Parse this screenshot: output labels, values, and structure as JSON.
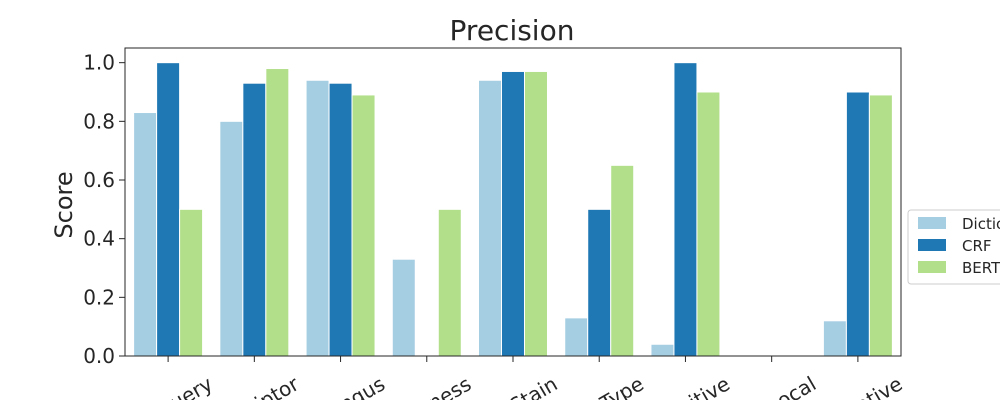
{
  "chart_data": {
    "type": "bar",
    "title": "Precision",
    "xlabel": "",
    "ylabel": "Score",
    "ylim": [
      0,
      1.05
    ],
    "yticks": [
      "0.0",
      "0.2",
      "0.4",
      "0.6",
      "0.8",
      "1.0"
    ],
    "categories": [
      "Query",
      "Descriptor",
      "Fungus",
      "Thickness",
      "Stain",
      "Type",
      "Positive",
      "Equivocal",
      "Negative"
    ],
    "category_visible_text": [
      "uery",
      "iptor",
      "ngus",
      "ness",
      "Stain",
      "Type",
      "itive",
      "ocal",
      "ative"
    ],
    "series": [
      {
        "name": "Dictionary",
        "label_visible": "Dictio",
        "color": "#a6cee3",
        "values": [
          0.83,
          0.8,
          0.94,
          0.33,
          0.94,
          0.13,
          0.04,
          0.0,
          0.12
        ]
      },
      {
        "name": "CRF",
        "label_visible": "CRF",
        "color": "#1f78b4",
        "values": [
          1.0,
          0.93,
          0.93,
          0.0,
          0.97,
          0.5,
          1.0,
          0.0,
          0.9
        ]
      },
      {
        "name": "BERT",
        "label_visible": "BERT",
        "color": "#b2df8a",
        "values": [
          0.5,
          0.98,
          0.89,
          0.5,
          0.97,
          0.65,
          0.9,
          0.0,
          0.89
        ]
      }
    ],
    "legend": "right",
    "grid": false
  }
}
